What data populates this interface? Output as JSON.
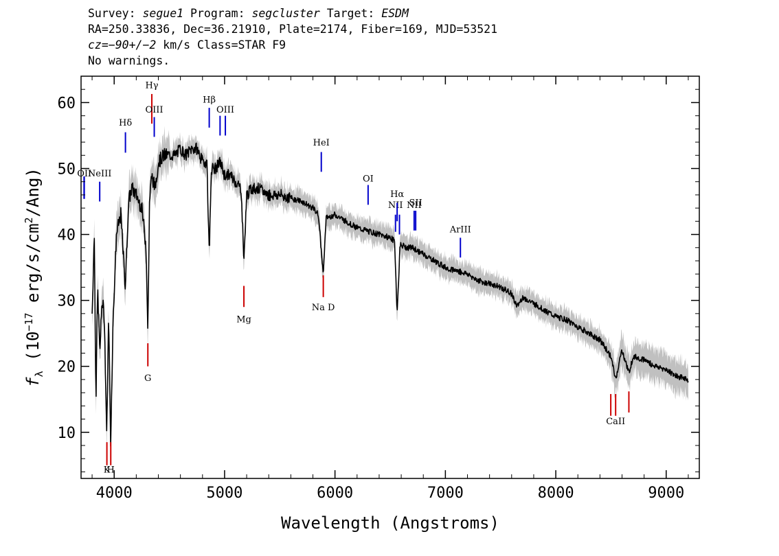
{
  "header": {
    "line1": {
      "survey_label": "Survey: ",
      "survey_value": "segue1",
      "program_label": " Program: ",
      "program_value": "segcluster",
      "target_label": " Target: ",
      "target_value": "ESDM"
    },
    "line2": "RA=250.33836, Dec=36.21910, Plate=2174, Fiber=169, MJD=53521",
    "line3": {
      "cz": "cz=−90+/−2",
      "rest": " km/s Class=STAR F9"
    },
    "line4": "No warnings."
  },
  "chart_data": {
    "type": "line",
    "xlabel": "Wavelength (Angstroms)",
    "ylabel_parts": {
      "f": "f",
      "sub": "λ",
      "pre": " (10",
      "exp": "−17",
      "mid": " erg/s/cm",
      "exp2": "2",
      "post": "/Ang)"
    },
    "xlim": [
      3700,
      9300
    ],
    "ylim": [
      3,
      64
    ],
    "x_ticks": [
      4000,
      5000,
      6000,
      7000,
      8000,
      9000
    ],
    "y_ticks": [
      10,
      20,
      30,
      40,
      50,
      60
    ],
    "colors": {
      "flux": "#000000",
      "error_band": "#c0c0c0",
      "emission_lines": "#0000cc",
      "absorption_lines": "#cc0000"
    },
    "series": [
      {
        "x": [
          3800,
          3820,
          3835,
          3850,
          3870,
          3890,
          3910,
          3933,
          3950,
          3968,
          3990,
          4020,
          4060,
          4101,
          4130,
          4160,
          4200,
          4250,
          4290,
          4305,
          4320,
          4340,
          4370,
          4400,
          4450,
          4500,
          4550,
          4600,
          4650,
          4700,
          4750,
          4800,
          4840,
          4861,
          4880,
          4920,
          4960,
          5000,
          5050,
          5100,
          5150,
          5175,
          5200,
          5250,
          5300,
          5400,
          5500,
          5600,
          5700,
          5800,
          5850,
          5893,
          5920,
          6000,
          6100,
          6200,
          6300,
          6400,
          6500,
          6540,
          6563,
          6590,
          6650,
          6700,
          6800,
          6900,
          7000,
          7100,
          7200,
          7300,
          7400,
          7500,
          7600,
          7650,
          7700,
          7800,
          7900,
          8000,
          8100,
          8200,
          8300,
          8400,
          8498,
          8542,
          8600,
          8662,
          8700,
          8800,
          8900,
          9000,
          9100,
          9200
        ],
        "y": [
          28,
          40,
          15,
          32,
          22,
          30,
          28,
          9.5,
          28,
          8.5,
          27,
          40,
          43,
          32,
          45,
          47,
          46,
          44,
          38,
          25,
          45,
          49,
          47,
          51,
          52,
          52,
          52,
          53,
          52,
          53,
          53,
          51,
          51,
          37,
          50,
          50,
          51,
          49,
          49,
          48,
          47,
          36,
          46,
          47,
          47,
          46,
          46,
          45.5,
          45,
          44,
          43,
          34,
          42.5,
          43,
          42,
          41,
          40.5,
          40,
          39.5,
          39,
          28,
          38.5,
          38,
          38,
          37,
          36,
          35,
          34.5,
          34,
          33,
          32.5,
          32,
          31,
          29,
          30.5,
          29.5,
          28.5,
          27.5,
          27,
          26,
          25,
          24,
          21.5,
          18,
          22.5,
          19,
          21.5,
          21,
          20,
          19.5,
          18.5,
          18
        ]
      }
    ],
    "line_markers": [
      {
        "label": "",
        "x": 3727,
        "y0": 45.4,
        "y1": 48.8,
        "color": "blue",
        "label_y": 48.8
      },
      {
        "label": "OII",
        "x": 3729,
        "y0": 45.4,
        "y1": 48.8,
        "color": "blue",
        "label_y": 48.8
      },
      {
        "label": "NeIII",
        "x": 3869,
        "y0": 45.0,
        "y1": 48.0,
        "color": "blue",
        "label_y": 48.8
      },
      {
        "label": "Hδ",
        "x": 4102,
        "y0": 52.4,
        "y1": 55.5,
        "color": "blue",
        "label_y": 56.5
      },
      {
        "label": "Hγ",
        "x": 4341,
        "y0": 56.8,
        "y1": 61.3,
        "color": "red",
        "label_y": 62.2
      },
      {
        "label": "OIII",
        "x": 4363,
        "y0": 54.8,
        "y1": 57.8,
        "color": "blue",
        "label_y": 58.5
      },
      {
        "label": "Hβ",
        "x": 4861,
        "y0": 56.2,
        "y1": 59.2,
        "color": "blue",
        "label_y": 60.0
      },
      {
        "label": "",
        "x": 4959,
        "y0": 55.0,
        "y1": 58.0,
        "color": "blue",
        "label_y": 58.5
      },
      {
        "label": "OIII",
        "x": 5007,
        "y0": 55.0,
        "y1": 58.0,
        "color": "blue",
        "label_y": 58.5
      },
      {
        "label": "HeI",
        "x": 5876,
        "y0": 49.5,
        "y1": 52.5,
        "color": "blue",
        "label_y": 53.5
      },
      {
        "label": "OI",
        "x": 6300,
        "y0": 44.5,
        "y1": 47.5,
        "color": "blue",
        "label_y": 48.0
      },
      {
        "label": "NII",
        "x": 6548,
        "y0": 40.4,
        "y1": 43.0,
        "color": "blue",
        "label_y": 44.0
      },
      {
        "label": "Hα",
        "x": 6563,
        "y0": 42.0,
        "y1": 44.8,
        "color": "blue",
        "label_y": 45.7
      },
      {
        "label": "",
        "x": 6584,
        "y0": 40.0,
        "y1": 43.0,
        "color": "blue",
        "label_y": 44.0
      },
      {
        "label": "NII",
        "x": 6717,
        "y0": 40.6,
        "y1": 43.6,
        "color": "blue",
        "label_y": 44.0
      },
      {
        "label": "SII",
        "x": 6731,
        "y0": 40.6,
        "y1": 43.6,
        "color": "blue",
        "label_y": 44.4
      },
      {
        "label": "ArIII",
        "x": 7136,
        "y0": 36.5,
        "y1": 39.5,
        "color": "blue",
        "label_y": 40.3
      },
      {
        "label": "K",
        "x": 3934,
        "y0": 5.0,
        "y1": 8.5,
        "color": "red",
        "label_y": 3.9
      },
      {
        "label": "H",
        "x": 3969,
        "y0": 5.0,
        "y1": 8.5,
        "color": "red",
        "label_y": 3.9
      },
      {
        "label": "G",
        "x": 4305,
        "y0": 20.0,
        "y1": 23.5,
        "color": "red",
        "label_y": 17.8
      },
      {
        "label": "Mg",
        "x": 5175,
        "y0": 29.0,
        "y1": 32.2,
        "color": "red",
        "label_y": 26.7
      },
      {
        "label": "Na D",
        "x": 5894,
        "y0": 30.5,
        "y1": 33.8,
        "color": "red",
        "label_y": 28.5
      },
      {
        "label": "",
        "x": 8498,
        "y0": 12.5,
        "y1": 15.8,
        "color": "red",
        "label_y": 11.2
      },
      {
        "label": "CaII",
        "x": 8542,
        "y0": 12.5,
        "y1": 15.8,
        "color": "red",
        "label_y": 11.2
      },
      {
        "label": "",
        "x": 8662,
        "y0": 13.0,
        "y1": 16.2,
        "color": "red",
        "label_y": 11.2
      }
    ]
  }
}
